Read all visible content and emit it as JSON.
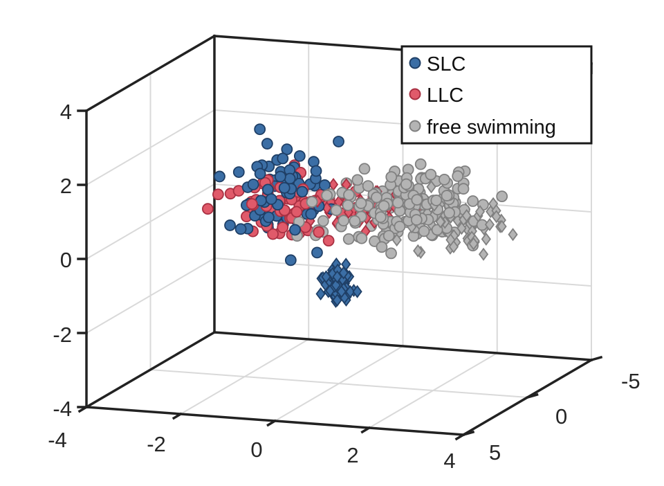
{
  "chart_data": {
    "type": "scatter",
    "projection": "3d",
    "grid": true,
    "legend_position": "top-right",
    "xlim": [
      -4,
      4
    ],
    "ylim": [
      -5,
      5
    ],
    "zlim": [
      -4,
      4
    ],
    "x_ticks": [
      "-4",
      "-2",
      "0",
      "2",
      "4"
    ],
    "y_ticks": [
      "-5",
      "0",
      "5"
    ],
    "z_ticks": [
      "-4",
      "-2",
      "0",
      "2",
      "4"
    ],
    "legend": [
      {
        "label": "SLC",
        "marker": "circle",
        "color": "#3b6ea5"
      },
      {
        "label": "LLC",
        "marker": "circle",
        "color": "#e05a6a"
      },
      {
        "label": "free swimming",
        "marker": "circle",
        "color": "#b4b4b4"
      }
    ],
    "series": [
      {
        "name": "SLC",
        "color": "#3b6ea5",
        "edge": "#1f3f66",
        "clusters": [
          {
            "marker": "circle",
            "n": 70,
            "x": [
              -2.8,
              0.3
            ],
            "y": [
              -1.5,
              1.5
            ],
            "z": [
              -0.9,
              2.8
            ],
            "seed": 11
          },
          {
            "marker": "diamond",
            "n": 60,
            "x": [
              -0.4,
              0.4
            ],
            "y": [
              -0.6,
              1.0
            ],
            "z": [
              -1.9,
              -0.6
            ],
            "seed": 13
          }
        ]
      },
      {
        "name": "LLC",
        "color": "#e05a6a",
        "edge": "#a83042",
        "clusters": [
          {
            "marker": "circle",
            "n": 80,
            "x": [
              -2.9,
              1.0
            ],
            "y": [
              -0.8,
              1.5
            ],
            "z": [
              -0.4,
              2.3
            ],
            "seed": 21
          },
          {
            "marker": "diamond",
            "n": 45,
            "x": [
              -1.0,
              2.0
            ],
            "y": [
              -1.5,
              1.0
            ],
            "z": [
              -0.1,
              1.7
            ],
            "seed": 23
          }
        ]
      },
      {
        "name": "free swimming",
        "color": "#b4b4b4",
        "edge": "#808080",
        "clusters": [
          {
            "marker": "circle",
            "n": 170,
            "x": [
              -1.4,
              3.2
            ],
            "y": [
              -4.5,
              1.2
            ],
            "z": [
              -0.7,
              1.8
            ],
            "seed": 31
          },
          {
            "marker": "diamond",
            "n": 60,
            "x": [
              0.2,
              3.8
            ],
            "y": [
              -3.5,
              -0.5
            ],
            "z": [
              -1.2,
              1.3
            ],
            "seed": 33
          }
        ]
      }
    ]
  }
}
